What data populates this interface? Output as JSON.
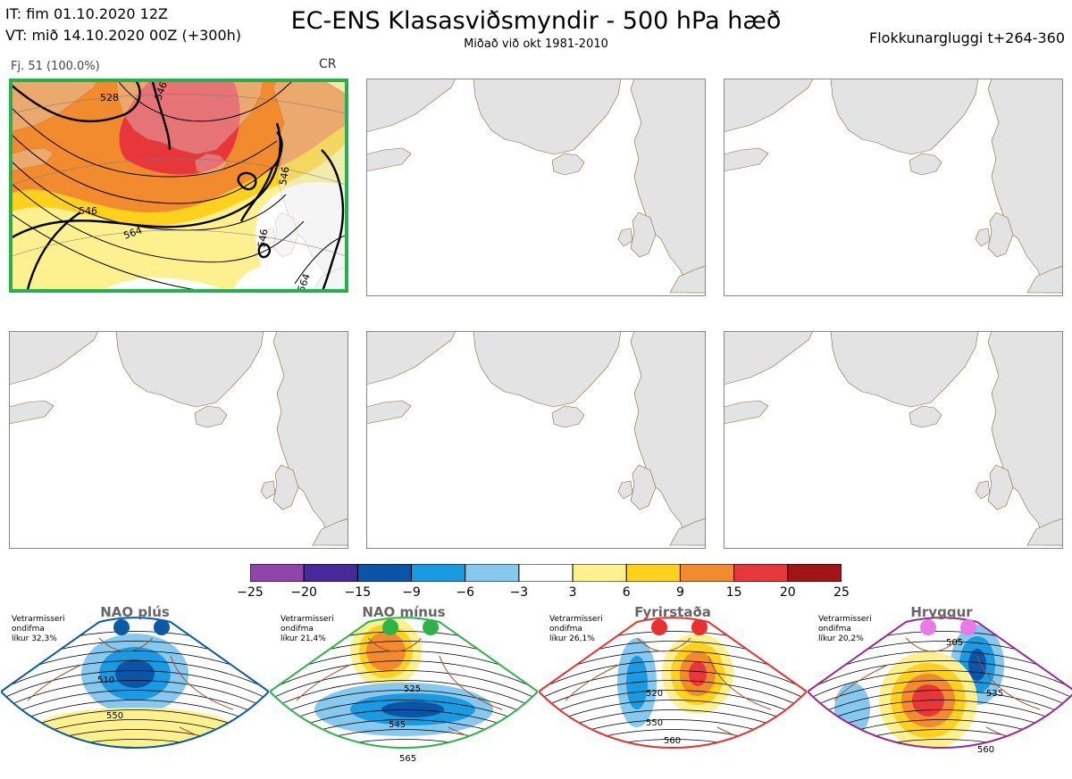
{
  "header": {
    "initial_time": "IT: fim 01.10.2020 12Z",
    "valid_time": "VT: mið 14.10.2020 00Z  (+300h)",
    "title": "EC-ENS Klasasviðsmyndir - 500 hPa hæð",
    "subtitle": "Miðað við okt 1981-2010",
    "window": "Flokkunargluggi t+264-360"
  },
  "panels": [
    {
      "label": "Fj. 51 (100.0%)",
      "regime": "CR",
      "frame_color": "#22b14c",
      "contours": [
        "528",
        "546",
        "546",
        "564",
        "546",
        "546",
        "564"
      ]
    }
  ],
  "colorbar": {
    "ticks": [
      "−25",
      "−20",
      "−15",
      "−9",
      "−6",
      "−3",
      "3",
      "6",
      "9",
      "15",
      "20",
      "25"
    ],
    "colors": [
      "#8e44a8",
      "#46299a",
      "#0a55a8",
      "#1a9ae0",
      "#87c8ee",
      "#ffffff",
      "#fdf08e",
      "#fdd11c",
      "#f28a2e",
      "#e8373a",
      "#a11418"
    ]
  },
  "regimes": [
    {
      "name": "NAO plús",
      "note": [
        "Vetrarmisseri",
        "ondifma",
        "líkur 32,3%"
      ],
      "color": "#0a5aa5",
      "dot_color": "#0a5aa5",
      "labels": [
        "510",
        "550"
      ]
    },
    {
      "name": "NAO mínus",
      "note": [
        "Vetrarmisseri",
        "ondifma",
        "líkur 21,4%"
      ],
      "color": "#2db34a",
      "dot_color": "#2db34a",
      "labels": [
        "525",
        "545",
        "565"
      ]
    },
    {
      "name": "Fyrirstaða",
      "note": [
        "Vetrarmisseri",
        "ondifma",
        "líkur 26,1%"
      ],
      "color": "#e83030",
      "dot_color": "#e83030",
      "labels": [
        "520",
        "550",
        "560"
      ]
    },
    {
      "name": "Hryggur",
      "note": [
        "Vetrarmisseri",
        "ondifma",
        "líkur 20,2%"
      ],
      "color": "#9a2a90",
      "dot_color": "#e87ae8",
      "labels": [
        "505",
        "535",
        "560"
      ]
    }
  ]
}
